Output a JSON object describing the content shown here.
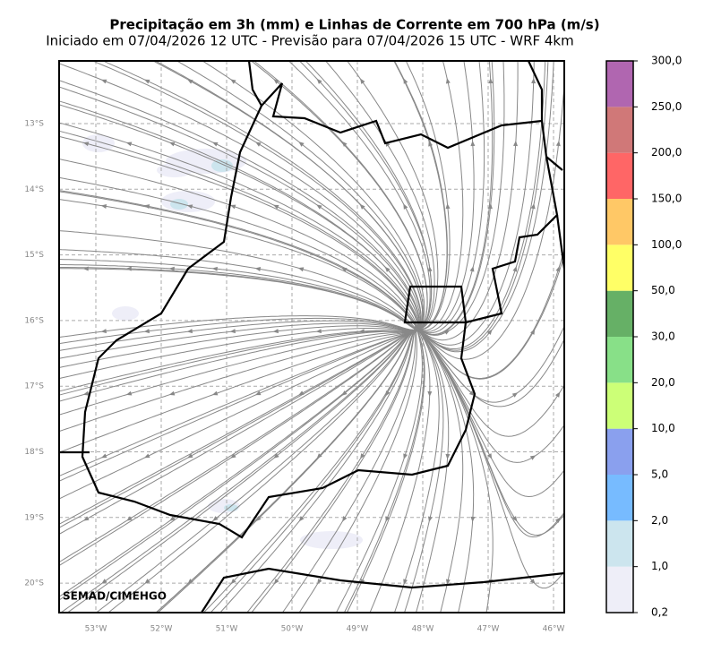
{
  "header": {
    "title": "Precipitação em 3h (mm) e Linhas de Corrente em 700 hPa (m/s)",
    "subtitle": "Iniciado em 07/04/2026 12 UTC - Previsão para 07/04/2026 15 UTC - WRF 4km"
  },
  "map": {
    "lat_labels": [
      "13°S",
      "14°S",
      "15°S",
      "16°S",
      "17°S",
      "18°S",
      "19°S",
      "20°S"
    ],
    "lon_labels": [
      "53°W",
      "52°W",
      "51°W",
      "50°W",
      "49°W",
      "48°W",
      "47°W",
      "46°W"
    ],
    "credit": "SEMAD/CIMEHGO"
  },
  "colorbar": {
    "ticks": [
      {
        "value": 0.2,
        "label": "0,2"
      },
      {
        "value": 1,
        "label": "1,0"
      },
      {
        "value": 2,
        "label": "2,0"
      },
      {
        "value": 5,
        "label": "5,0"
      },
      {
        "value": 10,
        "label": "10,0"
      },
      {
        "value": 20,
        "label": "20,0"
      },
      {
        "value": 30,
        "label": "30,0"
      },
      {
        "value": 50,
        "label": "50,0"
      },
      {
        "value": 100,
        "label": "100,0"
      },
      {
        "value": 150,
        "label": "150,0"
      },
      {
        "value": 200,
        "label": "200,0"
      },
      {
        "value": 250,
        "label": "250,0"
      },
      {
        "value": 300,
        "label": "300,0"
      }
    ],
    "colors": [
      "#eeeef8",
      "#cce5ee",
      "#77bbff",
      "#8aa0ee",
      "#ccff77",
      "#88e088",
      "#66b066",
      "#ffff66",
      "#ffc866",
      "#ff6666",
      "#d07878",
      "#b066b0"
    ]
  }
}
